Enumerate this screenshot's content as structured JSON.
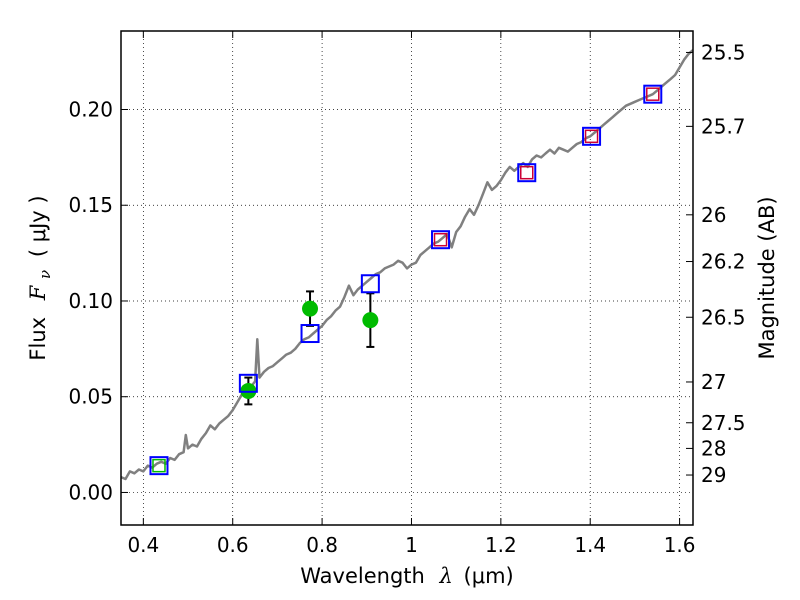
{
  "chart_data": {
    "type": "line",
    "xlabel": "Wavelength",
    "xlabel_symbol": "λ",
    "xlabel_unit": "(μm)",
    "ylabel": "Flux",
    "ylabel_symbol": "F",
    "ylabel_sub": "ν",
    "ylabel_unit": "(  μJy  )",
    "y2label": "Magnitude (AB)",
    "xlim": [
      0.35,
      1.63
    ],
    "ylim": [
      -0.017,
      0.241
    ],
    "grid": true,
    "x_ticks": [
      0.4,
      0.6,
      0.8,
      1.0,
      1.2,
      1.4,
      1.6
    ],
    "x_tick_labels": [
      "0.4",
      "0.6",
      "0.8",
      "1",
      "1.2",
      "1.4",
      "1.6"
    ],
    "y_ticks": [
      0.0,
      0.05,
      0.1,
      0.15,
      0.2
    ],
    "y_tick_labels": [
      "0.00",
      "0.05",
      "0.10",
      "0.15",
      "0.20"
    ],
    "right_ticks": [
      {
        "label": "25.5",
        "flux": 0.2298
      },
      {
        "label": "25.7",
        "flux": 0.1912
      },
      {
        "label": "26",
        "flux": 0.145
      },
      {
        "label": "26.2",
        "flux": 0.1206
      },
      {
        "label": "26.5",
        "flux": 0.0915
      },
      {
        "label": "27",
        "flux": 0.0577
      },
      {
        "label": "27.5",
        "flux": 0.0364
      },
      {
        "label": "28",
        "flux": 0.023
      },
      {
        "label": "29",
        "flux": 0.0091
      }
    ],
    "series": [
      {
        "kind": "model",
        "color": "#808080",
        "points": [
          [
            0.35,
            0.008
          ],
          [
            0.36,
            0.007
          ],
          [
            0.37,
            0.011
          ],
          [
            0.38,
            0.01
          ],
          [
            0.39,
            0.012
          ],
          [
            0.4,
            0.011
          ],
          [
            0.41,
            0.014
          ],
          [
            0.42,
            0.013
          ],
          [
            0.43,
            0.015
          ],
          [
            0.44,
            0.016
          ],
          [
            0.45,
            0.015
          ],
          [
            0.46,
            0.018
          ],
          [
            0.47,
            0.017
          ],
          [
            0.48,
            0.02
          ],
          [
            0.49,
            0.021
          ],
          [
            0.495,
            0.03
          ],
          [
            0.5,
            0.023
          ],
          [
            0.51,
            0.025
          ],
          [
            0.52,
            0.024
          ],
          [
            0.53,
            0.028
          ],
          [
            0.54,
            0.031
          ],
          [
            0.55,
            0.035
          ],
          [
            0.56,
            0.033
          ],
          [
            0.57,
            0.036
          ],
          [
            0.58,
            0.038
          ],
          [
            0.59,
            0.04
          ],
          [
            0.6,
            0.043
          ],
          [
            0.61,
            0.047
          ],
          [
            0.62,
            0.051
          ],
          [
            0.63,
            0.052
          ],
          [
            0.64,
            0.055
          ],
          [
            0.65,
            0.058
          ],
          [
            0.655,
            0.08
          ],
          [
            0.66,
            0.06
          ],
          [
            0.67,
            0.063
          ],
          [
            0.68,
            0.065
          ],
          [
            0.69,
            0.066
          ],
          [
            0.7,
            0.068
          ],
          [
            0.71,
            0.07
          ],
          [
            0.72,
            0.072
          ],
          [
            0.73,
            0.073
          ],
          [
            0.74,
            0.075
          ],
          [
            0.75,
            0.078
          ],
          [
            0.76,
            0.08
          ],
          [
            0.77,
            0.081
          ],
          [
            0.78,
            0.083
          ],
          [
            0.79,
            0.085
          ],
          [
            0.8,
            0.087
          ],
          [
            0.81,
            0.09
          ],
          [
            0.82,
            0.092
          ],
          [
            0.83,
            0.095
          ],
          [
            0.84,
            0.097
          ],
          [
            0.85,
            0.102
          ],
          [
            0.86,
            0.108
          ],
          [
            0.87,
            0.103
          ],
          [
            0.88,
            0.106
          ],
          [
            0.89,
            0.108
          ],
          [
            0.9,
            0.11
          ],
          [
            0.91,
            0.112
          ],
          [
            0.92,
            0.114
          ],
          [
            0.93,
            0.115
          ],
          [
            0.94,
            0.117
          ],
          [
            0.95,
            0.118
          ],
          [
            0.96,
            0.119
          ],
          [
            0.97,
            0.121
          ],
          [
            0.98,
            0.12
          ],
          [
            0.99,
            0.117
          ],
          [
            1.0,
            0.119
          ],
          [
            1.01,
            0.12
          ],
          [
            1.02,
            0.124
          ],
          [
            1.03,
            0.126
          ],
          [
            1.04,
            0.128
          ],
          [
            1.05,
            0.13
          ],
          [
            1.06,
            0.131
          ],
          [
            1.07,
            0.133
          ],
          [
            1.08,
            0.135
          ],
          [
            1.09,
            0.128
          ],
          [
            1.1,
            0.136
          ],
          [
            1.11,
            0.139
          ],
          [
            1.12,
            0.144
          ],
          [
            1.13,
            0.148
          ],
          [
            1.14,
            0.145
          ],
          [
            1.15,
            0.15
          ],
          [
            1.16,
            0.156
          ],
          [
            1.17,
            0.162
          ],
          [
            1.18,
            0.158
          ],
          [
            1.19,
            0.16
          ],
          [
            1.2,
            0.163
          ],
          [
            1.21,
            0.167
          ],
          [
            1.22,
            0.17
          ],
          [
            1.23,
            0.168
          ],
          [
            1.24,
            0.17
          ],
          [
            1.25,
            0.172
          ],
          [
            1.26,
            0.17
          ],
          [
            1.27,
            0.174
          ],
          [
            1.28,
            0.176
          ],
          [
            1.29,
            0.175
          ],
          [
            1.3,
            0.177
          ],
          [
            1.31,
            0.179
          ],
          [
            1.32,
            0.177
          ],
          [
            1.33,
            0.18
          ],
          [
            1.34,
            0.179
          ],
          [
            1.35,
            0.178
          ],
          [
            1.36,
            0.18
          ],
          [
            1.37,
            0.182
          ],
          [
            1.38,
            0.183
          ],
          [
            1.39,
            0.185
          ],
          [
            1.4,
            0.186
          ],
          [
            1.41,
            0.188
          ],
          [
            1.42,
            0.19
          ],
          [
            1.43,
            0.192
          ],
          [
            1.44,
            0.194
          ],
          [
            1.45,
            0.196
          ],
          [
            1.46,
            0.198
          ],
          [
            1.47,
            0.2
          ],
          [
            1.48,
            0.202
          ],
          [
            1.49,
            0.203
          ],
          [
            1.5,
            0.204
          ],
          [
            1.51,
            0.205
          ],
          [
            1.52,
            0.206
          ],
          [
            1.53,
            0.207
          ],
          [
            1.54,
            0.208
          ],
          [
            1.55,
            0.21
          ],
          [
            1.56,
            0.212
          ],
          [
            1.57,
            0.214
          ],
          [
            1.58,
            0.216
          ],
          [
            1.59,
            0.218
          ],
          [
            1.6,
            0.222
          ],
          [
            1.61,
            0.226
          ],
          [
            1.62,
            0.229
          ],
          [
            1.63,
            0.231
          ]
        ]
      },
      {
        "kind": "blue-squares",
        "color": "#0000ff",
        "points": [
          [
            0.435,
            0.014
          ],
          [
            0.635,
            0.057
          ],
          [
            0.773,
            0.083
          ],
          [
            0.908,
            0.109
          ],
          [
            1.065,
            0.132
          ],
          [
            1.258,
            0.167
          ],
          [
            1.403,
            0.186
          ],
          [
            1.54,
            0.208
          ]
        ]
      },
      {
        "kind": "red-squares",
        "color": "#cc0033",
        "points": [
          [
            1.065,
            0.132
          ],
          [
            1.258,
            0.167
          ],
          [
            1.403,
            0.186
          ],
          [
            1.54,
            0.208
          ]
        ]
      },
      {
        "kind": "green-dots",
        "color": "#00bb00",
        "points": [
          {
            "x": 0.635,
            "y": 0.053,
            "err": 0.007
          },
          {
            "x": 0.773,
            "y": 0.096,
            "err": 0.009
          },
          {
            "x": 0.908,
            "y": 0.09,
            "err": 0.014
          }
        ]
      },
      {
        "kind": "green-squares",
        "color": "#00bb00",
        "points": [
          [
            0.435,
            0.014
          ]
        ]
      }
    ]
  }
}
